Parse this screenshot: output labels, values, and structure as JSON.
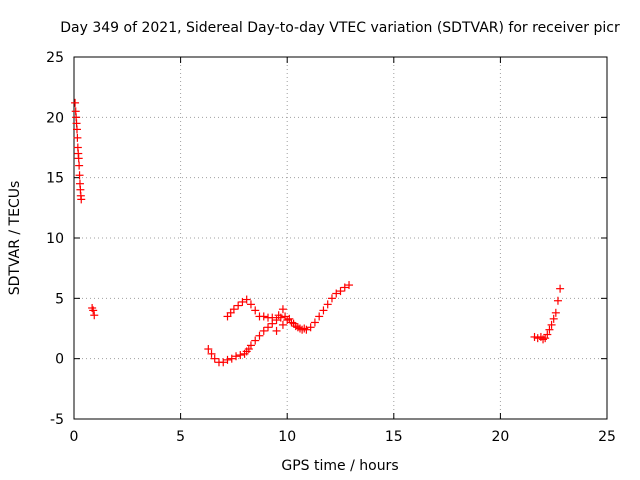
{
  "chart_data": {
    "type": "scatter",
    "title": "Day 349 of 2021, Sidereal Day-to-day VTEC variation (SDTVAR) for receiver picr",
    "xlabel": "GPS time / hours",
    "ylabel": "SDTVAR / TECUs",
    "xlim": [
      0,
      25
    ],
    "ylim": [
      -5,
      25
    ],
    "xticks": [
      0,
      5,
      10,
      15,
      20,
      25
    ],
    "yticks": [
      -5,
      0,
      5,
      10,
      15,
      20,
      25
    ],
    "grid": true,
    "marker": "plus",
    "color": "#ff0000",
    "series": [
      {
        "name": "SDTVAR",
        "x": [
          0.05,
          0.08,
          0.1,
          0.12,
          0.14,
          0.16,
          0.18,
          0.2,
          0.22,
          0.24,
          0.26,
          0.28,
          0.3,
          0.32,
          0.34,
          0.85,
          0.9,
          0.95,
          6.3,
          6.45,
          6.6,
          6.8,
          7.0,
          7.2,
          7.4,
          7.6,
          7.8,
          8.0,
          8.1,
          8.2,
          8.3,
          8.5,
          8.7,
          8.9,
          9.1,
          9.3,
          9.5,
          9.7,
          9.9,
          10.1,
          10.3,
          10.5,
          10.7,
          10.9,
          11.1,
          11.3,
          11.5,
          11.7,
          11.9,
          12.1,
          12.3,
          12.5,
          12.7,
          12.9,
          7.2,
          7.35,
          7.5,
          7.7,
          7.9,
          8.1,
          8.3,
          8.5,
          8.7,
          8.9,
          9.1,
          9.3,
          9.6,
          9.8,
          9.5,
          9.8,
          10.0,
          10.2,
          10.4,
          10.6,
          10.8,
          21.6,
          21.75,
          21.9,
          22.0,
          22.1,
          22.2,
          22.3,
          22.4,
          22.5,
          22.6,
          22.7,
          22.8
        ],
        "y": [
          21.2,
          20.5,
          20.0,
          19.5,
          19.0,
          18.3,
          17.5,
          17.0,
          16.6,
          16.0,
          15.2,
          14.5,
          14.0,
          13.5,
          13.2,
          4.2,
          4.0,
          3.6,
          0.8,
          0.4,
          0.0,
          -0.3,
          -0.3,
          -0.1,
          0.0,
          0.2,
          0.3,
          0.4,
          0.6,
          0.8,
          1.1,
          1.5,
          1.9,
          2.3,
          2.6,
          2.9,
          3.2,
          3.4,
          3.5,
          3.3,
          2.9,
          2.6,
          2.4,
          2.4,
          2.6,
          3.0,
          3.5,
          4.0,
          4.5,
          5.0,
          5.4,
          5.6,
          5.9,
          6.1,
          3.5,
          3.8,
          4.1,
          4.4,
          4.7,
          4.9,
          4.5,
          4.0,
          3.5,
          3.5,
          3.4,
          3.4,
          3.6,
          4.1,
          2.3,
          2.8,
          3.2,
          3.0,
          2.7,
          2.5,
          2.5,
          1.8,
          1.7,
          1.8,
          1.6,
          1.7,
          2.0,
          2.4,
          2.8,
          3.3,
          3.8,
          4.8,
          5.8
        ]
      }
    ]
  }
}
